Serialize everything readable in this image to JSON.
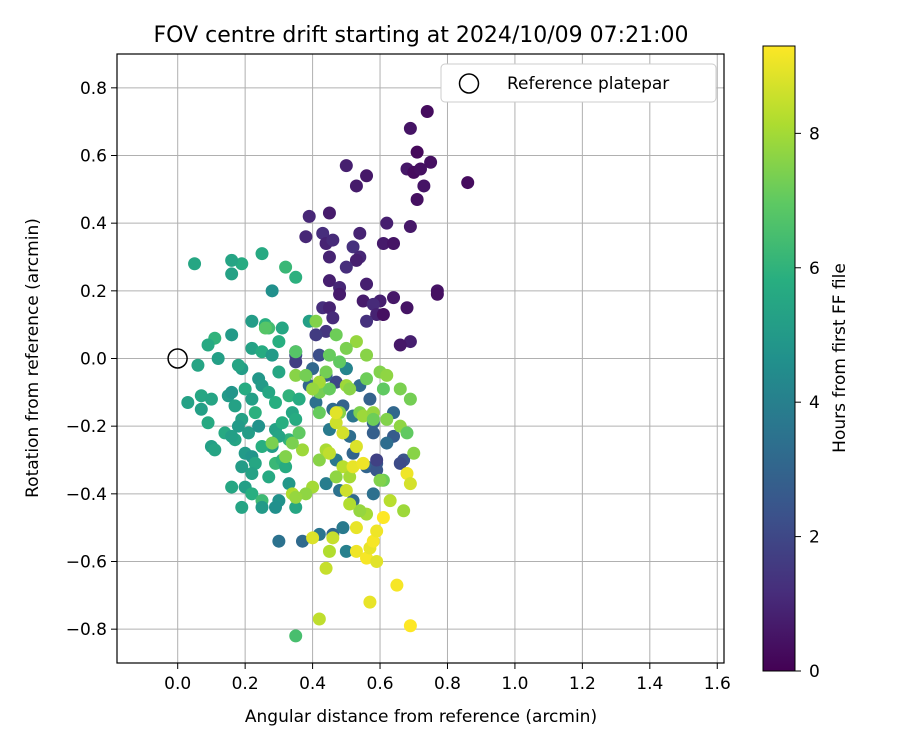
{
  "chart_data": {
    "type": "scatter",
    "title": "FOV centre drift starting at 2024/10/09 07:21:00",
    "xlabel": "Angular distance from reference (arcmin)",
    "ylabel": "Rotation from reference (arcmin)",
    "xlim": [
      -0.18,
      1.62
    ],
    "ylim": [
      -0.9,
      0.9
    ],
    "xticks": [
      "0.0",
      "0.2",
      "0.4",
      "0.6",
      "0.8",
      "1.0",
      "1.2",
      "1.4",
      "1.6"
    ],
    "yticks": [
      "−0.8",
      "−0.6",
      "−0.4",
      "−0.2",
      "0.0",
      "0.2",
      "0.4",
      "0.6",
      "0.8"
    ],
    "grid": true,
    "legend": {
      "placement": "top-right",
      "entries": [
        "Reference platepar"
      ]
    },
    "colorbar": {
      "label": "Hours from first FF file",
      "colormap": "viridis",
      "range": [
        0,
        9.3
      ],
      "ticks": [
        "0",
        "2",
        "4",
        "6",
        "8"
      ]
    },
    "reference_point": {
      "x": 0.0,
      "y": 0.0
    },
    "points": [
      {
        "x": 0.74,
        "y": 0.73,
        "c": 0.3
      },
      {
        "x": 0.69,
        "y": 0.68,
        "c": 0.5
      },
      {
        "x": 0.71,
        "y": 0.61,
        "c": 0.2
      },
      {
        "x": 0.75,
        "y": 0.58,
        "c": 0.4
      },
      {
        "x": 0.68,
        "y": 0.56,
        "c": 0.6
      },
      {
        "x": 0.7,
        "y": 0.55,
        "c": 0.3
      },
      {
        "x": 0.72,
        "y": 0.56,
        "c": 0.4
      },
      {
        "x": 0.73,
        "y": 0.51,
        "c": 0.5
      },
      {
        "x": 0.86,
        "y": 0.52,
        "c": 0.3
      },
      {
        "x": 0.5,
        "y": 0.57,
        "c": 0.8
      },
      {
        "x": 0.56,
        "y": 0.54,
        "c": 0.6
      },
      {
        "x": 0.53,
        "y": 0.51,
        "c": 0.7
      },
      {
        "x": 0.71,
        "y": 0.47,
        "c": 0.4
      },
      {
        "x": 0.39,
        "y": 0.42,
        "c": 1.0
      },
      {
        "x": 0.45,
        "y": 0.43,
        "c": 0.7
      },
      {
        "x": 0.62,
        "y": 0.4,
        "c": 0.8
      },
      {
        "x": 0.69,
        "y": 0.39,
        "c": 0.6
      },
      {
        "x": 0.38,
        "y": 0.36,
        "c": 1.0
      },
      {
        "x": 0.43,
        "y": 0.37,
        "c": 1.2
      },
      {
        "x": 0.44,
        "y": 0.34,
        "c": 0.9
      },
      {
        "x": 0.46,
        "y": 0.35,
        "c": 1.1
      },
      {
        "x": 0.54,
        "y": 0.37,
        "c": 0.9
      },
      {
        "x": 0.52,
        "y": 0.33,
        "c": 1.3
      },
      {
        "x": 0.54,
        "y": 0.3,
        "c": 1.0
      },
      {
        "x": 0.53,
        "y": 0.29,
        "c": 0.8
      },
      {
        "x": 0.61,
        "y": 0.34,
        "c": 0.7
      },
      {
        "x": 0.64,
        "y": 0.34,
        "c": 0.5
      },
      {
        "x": 0.45,
        "y": 0.3,
        "c": 0.9
      },
      {
        "x": 0.5,
        "y": 0.27,
        "c": 1.2
      },
      {
        "x": 0.45,
        "y": 0.23,
        "c": 0.8
      },
      {
        "x": 0.48,
        "y": 0.21,
        "c": 1.0
      },
      {
        "x": 0.56,
        "y": 0.22,
        "c": 0.8
      },
      {
        "x": 0.48,
        "y": 0.19,
        "c": 0.7
      },
      {
        "x": 0.77,
        "y": 0.2,
        "c": 0.5
      },
      {
        "x": 0.77,
        "y": 0.19,
        "c": 0.4
      },
      {
        "x": 0.64,
        "y": 0.18,
        "c": 0.6
      },
      {
        "x": 0.6,
        "y": 0.17,
        "c": 0.8
      },
      {
        "x": 0.55,
        "y": 0.17,
        "c": 0.7
      },
      {
        "x": 0.58,
        "y": 0.16,
        "c": 1.1
      },
      {
        "x": 0.43,
        "y": 0.15,
        "c": 1.2
      },
      {
        "x": 0.45,
        "y": 0.15,
        "c": 0.9
      },
      {
        "x": 0.59,
        "y": 0.13,
        "c": 0.9
      },
      {
        "x": 0.61,
        "y": 0.13,
        "c": 0.4
      },
      {
        "x": 0.68,
        "y": 0.15,
        "c": 0.5
      },
      {
        "x": 0.56,
        "y": 0.11,
        "c": 1.3
      },
      {
        "x": 0.46,
        "y": 0.12,
        "c": 1.1
      },
      {
        "x": 0.44,
        "y": 0.08,
        "c": 1.4
      },
      {
        "x": 0.69,
        "y": 0.05,
        "c": 0.8
      },
      {
        "x": 0.66,
        "y": 0.04,
        "c": 0.6
      },
      {
        "x": 0.41,
        "y": 0.07,
        "c": 1.6
      },
      {
        "x": 0.35,
        "y": 0.02,
        "c": 1.8
      },
      {
        "x": 0.35,
        "y": 0.01,
        "c": 2.0
      },
      {
        "x": 0.35,
        "y": -0.01,
        "c": 1.7
      },
      {
        "x": 0.42,
        "y": 0.01,
        "c": 2.2
      },
      {
        "x": 0.5,
        "y": -0.03,
        "c": 2.4
      },
      {
        "x": 0.47,
        "y": -0.07,
        "c": 2.0
      },
      {
        "x": 0.19,
        "y": 0.28,
        "c": 5.7
      },
      {
        "x": 0.05,
        "y": 0.28,
        "c": 5.5
      },
      {
        "x": 0.16,
        "y": 0.29,
        "c": 5.4
      },
      {
        "x": 0.25,
        "y": 0.31,
        "c": 5.6
      },
      {
        "x": 0.16,
        "y": 0.25,
        "c": 5.3
      },
      {
        "x": 0.32,
        "y": 0.27,
        "c": 6.2
      },
      {
        "x": 0.35,
        "y": 0.24,
        "c": 5.9
      },
      {
        "x": 0.28,
        "y": 0.2,
        "c": 4.6
      },
      {
        "x": 0.39,
        "y": 0.11,
        "c": 5.2
      },
      {
        "x": 0.31,
        "y": 0.09,
        "c": 5.5
      },
      {
        "x": 0.26,
        "y": 0.1,
        "c": 5.8
      },
      {
        "x": 0.22,
        "y": 0.11,
        "c": 5.1
      },
      {
        "x": 0.16,
        "y": 0.07,
        "c": 5.0
      },
      {
        "x": 0.11,
        "y": 0.06,
        "c": 6.0
      },
      {
        "x": 0.09,
        "y": 0.04,
        "c": 5.6
      },
      {
        "x": 0.06,
        "y": -0.02,
        "c": 5.4
      },
      {
        "x": 0.12,
        "y": 0.0,
        "c": 5.2
      },
      {
        "x": 0.27,
        "y": 0.09,
        "c": 6.4
      },
      {
        "x": 0.3,
        "y": 0.05,
        "c": 5.8
      },
      {
        "x": 0.22,
        "y": 0.03,
        "c": 5.3
      },
      {
        "x": 0.25,
        "y": 0.02,
        "c": 5.7
      },
      {
        "x": 0.28,
        "y": 0.01,
        "c": 5.0
      },
      {
        "x": 0.3,
        "y": -0.04,
        "c": 5.5
      },
      {
        "x": 0.19,
        "y": -0.03,
        "c": 5.1
      },
      {
        "x": 0.18,
        "y": -0.02,
        "c": 5.4
      },
      {
        "x": 0.03,
        "y": -0.13,
        "c": 5.3
      },
      {
        "x": 0.07,
        "y": -0.11,
        "c": 5.5
      },
      {
        "x": 0.07,
        "y": -0.15,
        "c": 5.2
      },
      {
        "x": 0.1,
        "y": -0.12,
        "c": 5.4
      },
      {
        "x": 0.09,
        "y": -0.19,
        "c": 5.6
      },
      {
        "x": 0.15,
        "y": -0.11,
        "c": 5.0
      },
      {
        "x": 0.17,
        "y": -0.14,
        "c": 5.3
      },
      {
        "x": 0.16,
        "y": -0.1,
        "c": 4.8
      },
      {
        "x": 0.2,
        "y": -0.09,
        "c": 5.7
      },
      {
        "x": 0.22,
        "y": -0.12,
        "c": 5.2
      },
      {
        "x": 0.24,
        "y": -0.06,
        "c": 4.9
      },
      {
        "x": 0.25,
        "y": -0.08,
        "c": 5.0
      },
      {
        "x": 0.27,
        "y": -0.1,
        "c": 5.5
      },
      {
        "x": 0.29,
        "y": -0.13,
        "c": 5.8
      },
      {
        "x": 0.33,
        "y": -0.11,
        "c": 6.0
      },
      {
        "x": 0.36,
        "y": -0.12,
        "c": 5.7
      },
      {
        "x": 0.19,
        "y": -0.18,
        "c": 5.3
      },
      {
        "x": 0.21,
        "y": -0.22,
        "c": 5.1
      },
      {
        "x": 0.17,
        "y": -0.24,
        "c": 5.4
      },
      {
        "x": 0.18,
        "y": -0.2,
        "c": 5.0
      },
      {
        "x": 0.14,
        "y": -0.22,
        "c": 5.6
      },
      {
        "x": 0.16,
        "y": -0.23,
        "c": 5.2
      },
      {
        "x": 0.24,
        "y": -0.2,
        "c": 4.7
      },
      {
        "x": 0.23,
        "y": -0.16,
        "c": 5.9
      },
      {
        "x": 0.29,
        "y": -0.21,
        "c": 5.3
      },
      {
        "x": 0.31,
        "y": -0.19,
        "c": 5.8
      },
      {
        "x": 0.34,
        "y": -0.16,
        "c": 5.5
      },
      {
        "x": 0.35,
        "y": -0.18,
        "c": 5.7
      },
      {
        "x": 0.33,
        "y": -0.24,
        "c": 6.0
      },
      {
        "x": 0.3,
        "y": -0.23,
        "c": 5.4
      },
      {
        "x": 0.28,
        "y": -0.26,
        "c": 5.1
      },
      {
        "x": 0.25,
        "y": -0.26,
        "c": 5.8
      },
      {
        "x": 0.1,
        "y": -0.26,
        "c": 5.2
      },
      {
        "x": 0.11,
        "y": -0.27,
        "c": 5.4
      },
      {
        "x": 0.2,
        "y": -0.28,
        "c": 5.0
      },
      {
        "x": 0.22,
        "y": -0.29,
        "c": 4.8
      },
      {
        "x": 0.23,
        "y": -0.31,
        "c": 5.5
      },
      {
        "x": 0.29,
        "y": -0.31,
        "c": 6.2
      },
      {
        "x": 0.31,
        "y": -0.3,
        "c": 6.0
      },
      {
        "x": 0.32,
        "y": -0.32,
        "c": 5.7
      },
      {
        "x": 0.19,
        "y": -0.32,
        "c": 5.1
      },
      {
        "x": 0.22,
        "y": -0.34,
        "c": 5.3
      },
      {
        "x": 0.27,
        "y": -0.35,
        "c": 5.6
      },
      {
        "x": 0.33,
        "y": -0.37,
        "c": 4.9
      },
      {
        "x": 0.2,
        "y": -0.38,
        "c": 5.2
      },
      {
        "x": 0.16,
        "y": -0.38,
        "c": 5.5
      },
      {
        "x": 0.22,
        "y": -0.4,
        "c": 5.8
      },
      {
        "x": 0.25,
        "y": -0.42,
        "c": 6.3
      },
      {
        "x": 0.3,
        "y": -0.42,
        "c": 4.7
      },
      {
        "x": 0.19,
        "y": -0.44,
        "c": 5.4
      },
      {
        "x": 0.25,
        "y": -0.44,
        "c": 5.0
      },
      {
        "x": 0.29,
        "y": -0.44,
        "c": 4.6
      },
      {
        "x": 0.35,
        "y": -0.44,
        "c": 5.5
      },
      {
        "x": 0.3,
        "y": -0.54,
        "c": 3.5
      },
      {
        "x": 0.37,
        "y": -0.54,
        "c": 3.2
      },
      {
        "x": 0.35,
        "y": -0.82,
        "c": 6.5
      },
      {
        "x": 0.4,
        "y": -0.03,
        "c": 3.1
      },
      {
        "x": 0.44,
        "y": -0.05,
        "c": 2.8
      },
      {
        "x": 0.39,
        "y": -0.08,
        "c": 3.0
      },
      {
        "x": 0.41,
        "y": -0.13,
        "c": 3.4
      },
      {
        "x": 0.46,
        "y": -0.15,
        "c": 3.2
      },
      {
        "x": 0.49,
        "y": -0.14,
        "c": 2.9
      },
      {
        "x": 0.52,
        "y": -0.17,
        "c": 3.6
      },
      {
        "x": 0.45,
        "y": -0.21,
        "c": 3.8
      },
      {
        "x": 0.51,
        "y": -0.23,
        "c": 3.3
      },
      {
        "x": 0.52,
        "y": -0.28,
        "c": 3.0
      },
      {
        "x": 0.47,
        "y": -0.3,
        "c": 3.7
      },
      {
        "x": 0.44,
        "y": -0.37,
        "c": 3.9
      },
      {
        "x": 0.48,
        "y": -0.39,
        "c": 3.5
      },
      {
        "x": 0.52,
        "y": -0.42,
        "c": 3.2
      },
      {
        "x": 0.42,
        "y": -0.52,
        "c": 3.6
      },
      {
        "x": 0.46,
        "y": -0.52,
        "c": 3.1
      },
      {
        "x": 0.49,
        "y": -0.5,
        "c": 3.8
      },
      {
        "x": 0.5,
        "y": -0.57,
        "c": 4.0
      },
      {
        "x": 0.58,
        "y": -0.4,
        "c": 3.4
      },
      {
        "x": 0.56,
        "y": -0.32,
        "c": 3.0
      },
      {
        "x": 0.59,
        "y": -0.31,
        "c": 2.6
      },
      {
        "x": 0.58,
        "y": -0.22,
        "c": 2.8
      },
      {
        "x": 0.58,
        "y": -0.19,
        "c": 2.9
      },
      {
        "x": 0.64,
        "y": -0.16,
        "c": 3.1
      },
      {
        "x": 0.64,
        "y": -0.23,
        "c": 2.7
      },
      {
        "x": 0.62,
        "y": -0.25,
        "c": 3.3
      },
      {
        "x": 0.59,
        "y": -0.33,
        "c": 2.5
      },
      {
        "x": 0.59,
        "y": -0.3,
        "c": 1.8
      },
      {
        "x": 0.67,
        "y": -0.3,
        "c": 2.4
      },
      {
        "x": 0.66,
        "y": -0.31,
        "c": 2.1
      },
      {
        "x": 0.57,
        "y": -0.12,
        "c": 2.9
      },
      {
        "x": 0.54,
        "y": -0.08,
        "c": 3.2
      },
      {
        "x": 0.5,
        "y": -0.03,
        "c": 4.2
      },
      {
        "x": 0.35,
        "y": 0.02,
        "c": 6.8
      },
      {
        "x": 0.41,
        "y": 0.11,
        "c": 7.5
      },
      {
        "x": 0.47,
        "y": 0.07,
        "c": 7.2
      },
      {
        "x": 0.53,
        "y": 0.05,
        "c": 7.8
      },
      {
        "x": 0.56,
        "y": 0.01,
        "c": 7.6
      },
      {
        "x": 0.5,
        "y": 0.03,
        "c": 7.4
      },
      {
        "x": 0.45,
        "y": 0.01,
        "c": 7.1
      },
      {
        "x": 0.48,
        "y": -0.01,
        "c": 7.0
      },
      {
        "x": 0.44,
        "y": -0.04,
        "c": 7.3
      },
      {
        "x": 0.6,
        "y": -0.04,
        "c": 7.5
      },
      {
        "x": 0.56,
        "y": -0.06,
        "c": 7.2
      },
      {
        "x": 0.62,
        "y": -0.05,
        "c": 7.7
      },
      {
        "x": 0.66,
        "y": -0.09,
        "c": 7.4
      },
      {
        "x": 0.61,
        "y": -0.09,
        "c": 7.0
      },
      {
        "x": 0.5,
        "y": -0.08,
        "c": 7.9
      },
      {
        "x": 0.51,
        "y": -0.09,
        "c": 7.6
      },
      {
        "x": 0.42,
        "y": -0.1,
        "c": 7.3
      },
      {
        "x": 0.45,
        "y": -0.09,
        "c": 7.1
      },
      {
        "x": 0.48,
        "y": -0.16,
        "c": 7.6
      },
      {
        "x": 0.54,
        "y": -0.16,
        "c": 7.4
      },
      {
        "x": 0.55,
        "y": -0.17,
        "c": 7.9
      },
      {
        "x": 0.58,
        "y": -0.16,
        "c": 7.8
      },
      {
        "x": 0.58,
        "y": -0.18,
        "c": 7.2
      },
      {
        "x": 0.62,
        "y": -0.18,
        "c": 7.5
      },
      {
        "x": 0.66,
        "y": -0.2,
        "c": 7.7
      },
      {
        "x": 0.69,
        "y": -0.12,
        "c": 7.3
      },
      {
        "x": 0.68,
        "y": -0.22,
        "c": 7.0
      },
      {
        "x": 0.7,
        "y": -0.28,
        "c": 7.6
      },
      {
        "x": 0.61,
        "y": -0.36,
        "c": 7.2
      },
      {
        "x": 0.6,
        "y": -0.36,
        "c": 7.5
      },
      {
        "x": 0.63,
        "y": -0.42,
        "c": 8.3
      },
      {
        "x": 0.67,
        "y": -0.45,
        "c": 7.9
      },
      {
        "x": 0.56,
        "y": -0.46,
        "c": 8.0
      },
      {
        "x": 0.54,
        "y": -0.45,
        "c": 7.8
      },
      {
        "x": 0.51,
        "y": -0.43,
        "c": 8.2
      },
      {
        "x": 0.5,
        "y": -0.39,
        "c": 8.6
      },
      {
        "x": 0.4,
        "y": -0.38,
        "c": 8.0
      },
      {
        "x": 0.38,
        "y": -0.4,
        "c": 7.7
      },
      {
        "x": 0.34,
        "y": -0.4,
        "c": 8.2
      },
      {
        "x": 0.35,
        "y": -0.41,
        "c": 7.8
      },
      {
        "x": 0.32,
        "y": -0.29,
        "c": 7.5
      },
      {
        "x": 0.37,
        "y": -0.27,
        "c": 7.9
      },
      {
        "x": 0.34,
        "y": -0.25,
        "c": 7.4
      },
      {
        "x": 0.42,
        "y": -0.3,
        "c": 7.6
      },
      {
        "x": 0.44,
        "y": -0.27,
        "c": 8.1
      },
      {
        "x": 0.45,
        "y": -0.28,
        "c": 8.4
      },
      {
        "x": 0.49,
        "y": -0.32,
        "c": 8.3
      },
      {
        "x": 0.51,
        "y": -0.35,
        "c": 8.0
      },
      {
        "x": 0.47,
        "y": -0.35,
        "c": 7.7
      },
      {
        "x": 0.35,
        "y": -0.05,
        "c": 7.6
      },
      {
        "x": 0.38,
        "y": -0.05,
        "c": 7.3
      },
      {
        "x": 0.42,
        "y": -0.07,
        "c": 8.0
      },
      {
        "x": 0.4,
        "y": -0.09,
        "c": 7.8
      },
      {
        "x": 0.42,
        "y": -0.16,
        "c": 7.1
      },
      {
        "x": 0.26,
        "y": 0.09,
        "c": 6.8
      },
      {
        "x": 0.36,
        "y": -0.22,
        "c": 7.0
      },
      {
        "x": 0.28,
        "y": -0.25,
        "c": 7.4
      },
      {
        "x": 0.4,
        "y": -0.53,
        "c": 8.8
      },
      {
        "x": 0.44,
        "y": -0.62,
        "c": 8.5
      },
      {
        "x": 0.45,
        "y": -0.57,
        "c": 8.2
      },
      {
        "x": 0.42,
        "y": -0.77,
        "c": 8.4
      },
      {
        "x": 0.52,
        "y": -0.32,
        "c": 9.0
      },
      {
        "x": 0.55,
        "y": -0.31,
        "c": 9.1
      },
      {
        "x": 0.53,
        "y": -0.26,
        "c": 8.8
      },
      {
        "x": 0.49,
        "y": -0.22,
        "c": 8.7
      },
      {
        "x": 0.47,
        "y": -0.19,
        "c": 8.6
      },
      {
        "x": 0.47,
        "y": -0.16,
        "c": 8.9
      },
      {
        "x": 0.53,
        "y": -0.5,
        "c": 9.0
      },
      {
        "x": 0.53,
        "y": -0.57,
        "c": 9.1
      },
      {
        "x": 0.56,
        "y": -0.59,
        "c": 9.2
      },
      {
        "x": 0.57,
        "y": -0.56,
        "c": 9.0
      },
      {
        "x": 0.58,
        "y": -0.54,
        "c": 9.2
      },
      {
        "x": 0.59,
        "y": -0.51,
        "c": 9.1
      },
      {
        "x": 0.59,
        "y": -0.6,
        "c": 8.9
      },
      {
        "x": 0.61,
        "y": -0.47,
        "c": 9.3
      },
      {
        "x": 0.57,
        "y": -0.72,
        "c": 9.0
      },
      {
        "x": 0.65,
        "y": -0.67,
        "c": 9.2
      },
      {
        "x": 0.69,
        "y": -0.79,
        "c": 9.3
      },
      {
        "x": 0.68,
        "y": -0.34,
        "c": 9.1
      },
      {
        "x": 0.69,
        "y": -0.37,
        "c": 8.7
      },
      {
        "x": 0.46,
        "y": -0.53,
        "c": 8.5
      }
    ]
  }
}
